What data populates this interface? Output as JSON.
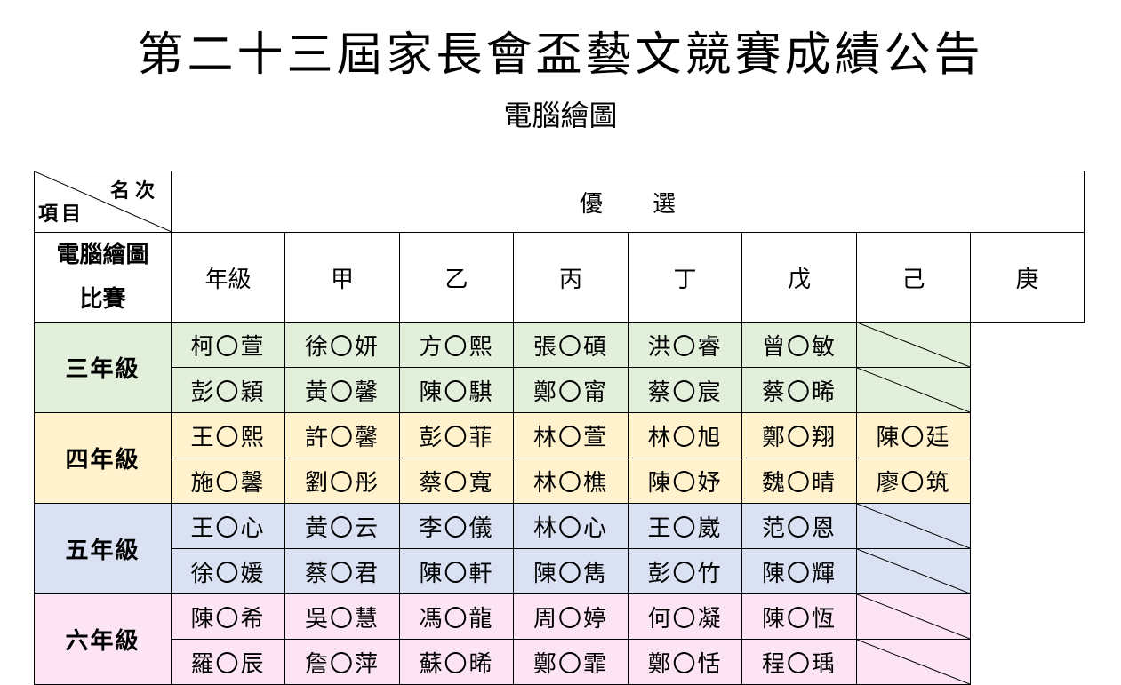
{
  "title": "第二十三屆家長會盃藝文競賽成績公告",
  "subtitle": "電腦繪圖",
  "table": {
    "corner_rank": "名次",
    "corner_item": "項目",
    "header": "優選",
    "grade_label": "年級",
    "columns": [
      "甲",
      "乙",
      "丙",
      "丁",
      "戊",
      "己",
      "庚"
    ],
    "item_line1": "電腦繪圖",
    "item_line2": "比賽",
    "grades": [
      {
        "label": "三年級",
        "rows": [
          [
            "柯〇萱",
            "徐〇妍",
            "方〇熙",
            "張〇碩",
            "洪〇睿",
            "曾〇敏",
            ""
          ],
          [
            "彭〇穎",
            "黃〇馨",
            "陳〇騏",
            "鄭〇甯",
            "蔡〇宸",
            "蔡〇晞",
            ""
          ]
        ]
      },
      {
        "label": "四年級",
        "rows": [
          [
            "王〇熙",
            "許〇馨",
            "彭〇菲",
            "林〇萱",
            "林〇旭",
            "鄭〇翔",
            "陳〇廷"
          ],
          [
            "施〇馨",
            "劉〇彤",
            "蔡〇寬",
            "林〇樵",
            "陳〇妤",
            "魏〇晴",
            "廖〇筑"
          ]
        ]
      },
      {
        "label": "五年級",
        "rows": [
          [
            "王〇心",
            "黃〇云",
            "李〇儀",
            "林〇心",
            "王〇崴",
            "范〇恩",
            ""
          ],
          [
            "徐〇媛",
            "蔡〇君",
            "陳〇軒",
            "陳〇雋",
            "彭〇竹",
            "陳〇輝",
            ""
          ]
        ]
      },
      {
        "label": "六年級",
        "rows": [
          [
            "陳〇希",
            "吳〇慧",
            "馮〇龍",
            "周〇婷",
            "何〇凝",
            "陳〇恆",
            ""
          ],
          [
            "羅〇辰",
            "詹〇萍",
            "蘇〇晞",
            "鄭〇霏",
            "鄭〇恬",
            "程〇瑀",
            ""
          ]
        ]
      }
    ]
  }
}
